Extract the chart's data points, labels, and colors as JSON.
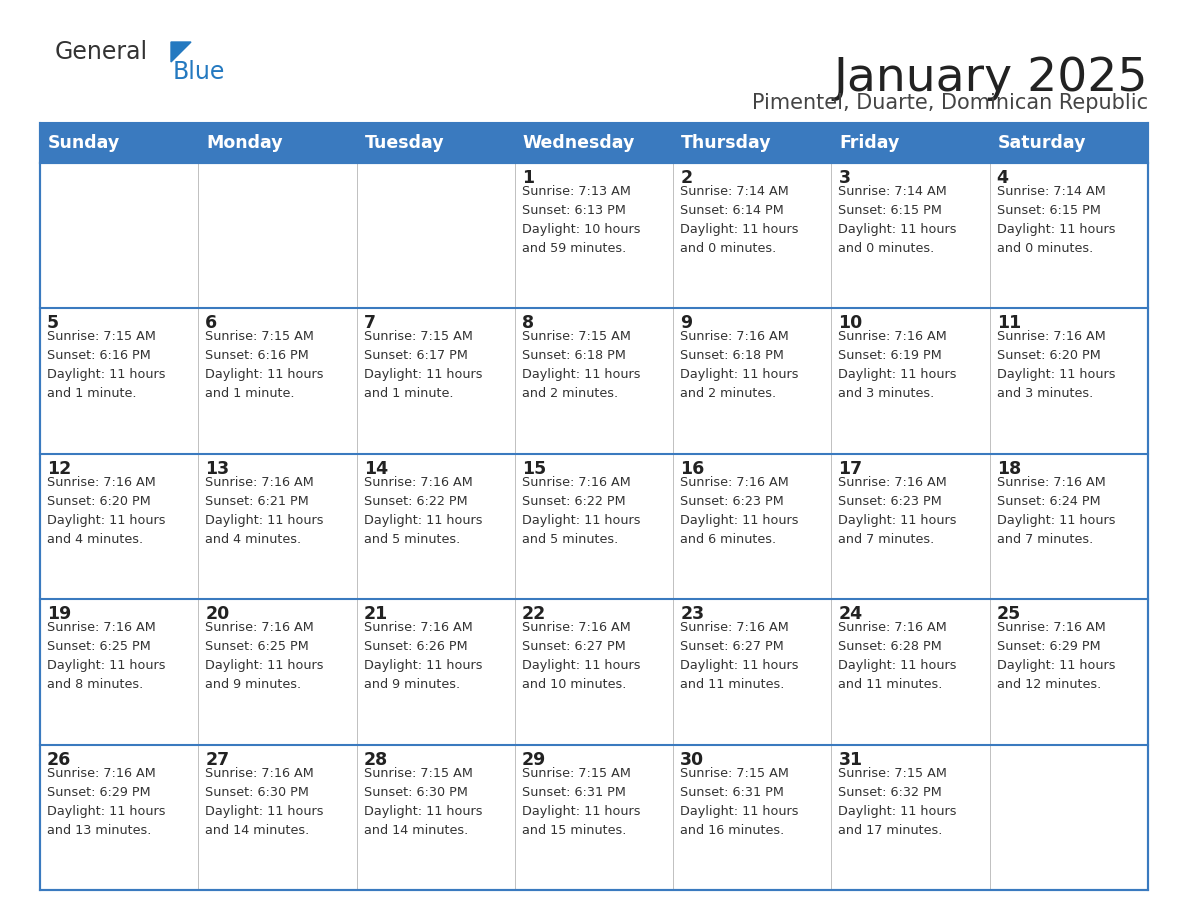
{
  "title": "January 2025",
  "subtitle": "Pimentel, Duarte, Dominican Republic",
  "header_bg_color": "#3a7abf",
  "header_text_color": "#FFFFFF",
  "cell_bg_color": "#FFFFFF",
  "cell_text_color": "#333333",
  "day_number_color": "#222222",
  "days_of_week": [
    "Sunday",
    "Monday",
    "Tuesday",
    "Wednesday",
    "Thursday",
    "Friday",
    "Saturday"
  ],
  "title_color": "#222222",
  "subtitle_color": "#444444",
  "logo_general_color": "#333333",
  "logo_blue_color": "#2479c0",
  "divider_color": "#3a7abf",
  "outer_border_color": "#3a7abf",
  "grid_line_color": "#c0c0c0",
  "calendar_data": [
    [
      {
        "day": null,
        "info": null
      },
      {
        "day": null,
        "info": null
      },
      {
        "day": null,
        "info": null
      },
      {
        "day": 1,
        "info": "Sunrise: 7:13 AM\nSunset: 6:13 PM\nDaylight: 10 hours\nand 59 minutes."
      },
      {
        "day": 2,
        "info": "Sunrise: 7:14 AM\nSunset: 6:14 PM\nDaylight: 11 hours\nand 0 minutes."
      },
      {
        "day": 3,
        "info": "Sunrise: 7:14 AM\nSunset: 6:15 PM\nDaylight: 11 hours\nand 0 minutes."
      },
      {
        "day": 4,
        "info": "Sunrise: 7:14 AM\nSunset: 6:15 PM\nDaylight: 11 hours\nand 0 minutes."
      }
    ],
    [
      {
        "day": 5,
        "info": "Sunrise: 7:15 AM\nSunset: 6:16 PM\nDaylight: 11 hours\nand 1 minute."
      },
      {
        "day": 6,
        "info": "Sunrise: 7:15 AM\nSunset: 6:16 PM\nDaylight: 11 hours\nand 1 minute."
      },
      {
        "day": 7,
        "info": "Sunrise: 7:15 AM\nSunset: 6:17 PM\nDaylight: 11 hours\nand 1 minute."
      },
      {
        "day": 8,
        "info": "Sunrise: 7:15 AM\nSunset: 6:18 PM\nDaylight: 11 hours\nand 2 minutes."
      },
      {
        "day": 9,
        "info": "Sunrise: 7:16 AM\nSunset: 6:18 PM\nDaylight: 11 hours\nand 2 minutes."
      },
      {
        "day": 10,
        "info": "Sunrise: 7:16 AM\nSunset: 6:19 PM\nDaylight: 11 hours\nand 3 minutes."
      },
      {
        "day": 11,
        "info": "Sunrise: 7:16 AM\nSunset: 6:20 PM\nDaylight: 11 hours\nand 3 minutes."
      }
    ],
    [
      {
        "day": 12,
        "info": "Sunrise: 7:16 AM\nSunset: 6:20 PM\nDaylight: 11 hours\nand 4 minutes."
      },
      {
        "day": 13,
        "info": "Sunrise: 7:16 AM\nSunset: 6:21 PM\nDaylight: 11 hours\nand 4 minutes."
      },
      {
        "day": 14,
        "info": "Sunrise: 7:16 AM\nSunset: 6:22 PM\nDaylight: 11 hours\nand 5 minutes."
      },
      {
        "day": 15,
        "info": "Sunrise: 7:16 AM\nSunset: 6:22 PM\nDaylight: 11 hours\nand 5 minutes."
      },
      {
        "day": 16,
        "info": "Sunrise: 7:16 AM\nSunset: 6:23 PM\nDaylight: 11 hours\nand 6 minutes."
      },
      {
        "day": 17,
        "info": "Sunrise: 7:16 AM\nSunset: 6:23 PM\nDaylight: 11 hours\nand 7 minutes."
      },
      {
        "day": 18,
        "info": "Sunrise: 7:16 AM\nSunset: 6:24 PM\nDaylight: 11 hours\nand 7 minutes."
      }
    ],
    [
      {
        "day": 19,
        "info": "Sunrise: 7:16 AM\nSunset: 6:25 PM\nDaylight: 11 hours\nand 8 minutes."
      },
      {
        "day": 20,
        "info": "Sunrise: 7:16 AM\nSunset: 6:25 PM\nDaylight: 11 hours\nand 9 minutes."
      },
      {
        "day": 21,
        "info": "Sunrise: 7:16 AM\nSunset: 6:26 PM\nDaylight: 11 hours\nand 9 minutes."
      },
      {
        "day": 22,
        "info": "Sunrise: 7:16 AM\nSunset: 6:27 PM\nDaylight: 11 hours\nand 10 minutes."
      },
      {
        "day": 23,
        "info": "Sunrise: 7:16 AM\nSunset: 6:27 PM\nDaylight: 11 hours\nand 11 minutes."
      },
      {
        "day": 24,
        "info": "Sunrise: 7:16 AM\nSunset: 6:28 PM\nDaylight: 11 hours\nand 11 minutes."
      },
      {
        "day": 25,
        "info": "Sunrise: 7:16 AM\nSunset: 6:29 PM\nDaylight: 11 hours\nand 12 minutes."
      }
    ],
    [
      {
        "day": 26,
        "info": "Sunrise: 7:16 AM\nSunset: 6:29 PM\nDaylight: 11 hours\nand 13 minutes."
      },
      {
        "day": 27,
        "info": "Sunrise: 7:16 AM\nSunset: 6:30 PM\nDaylight: 11 hours\nand 14 minutes."
      },
      {
        "day": 28,
        "info": "Sunrise: 7:15 AM\nSunset: 6:30 PM\nDaylight: 11 hours\nand 14 minutes."
      },
      {
        "day": 29,
        "info": "Sunrise: 7:15 AM\nSunset: 6:31 PM\nDaylight: 11 hours\nand 15 minutes."
      },
      {
        "day": 30,
        "info": "Sunrise: 7:15 AM\nSunset: 6:31 PM\nDaylight: 11 hours\nand 16 minutes."
      },
      {
        "day": 31,
        "info": "Sunrise: 7:15 AM\nSunset: 6:32 PM\nDaylight: 11 hours\nand 17 minutes."
      },
      {
        "day": null,
        "info": null
      }
    ]
  ]
}
